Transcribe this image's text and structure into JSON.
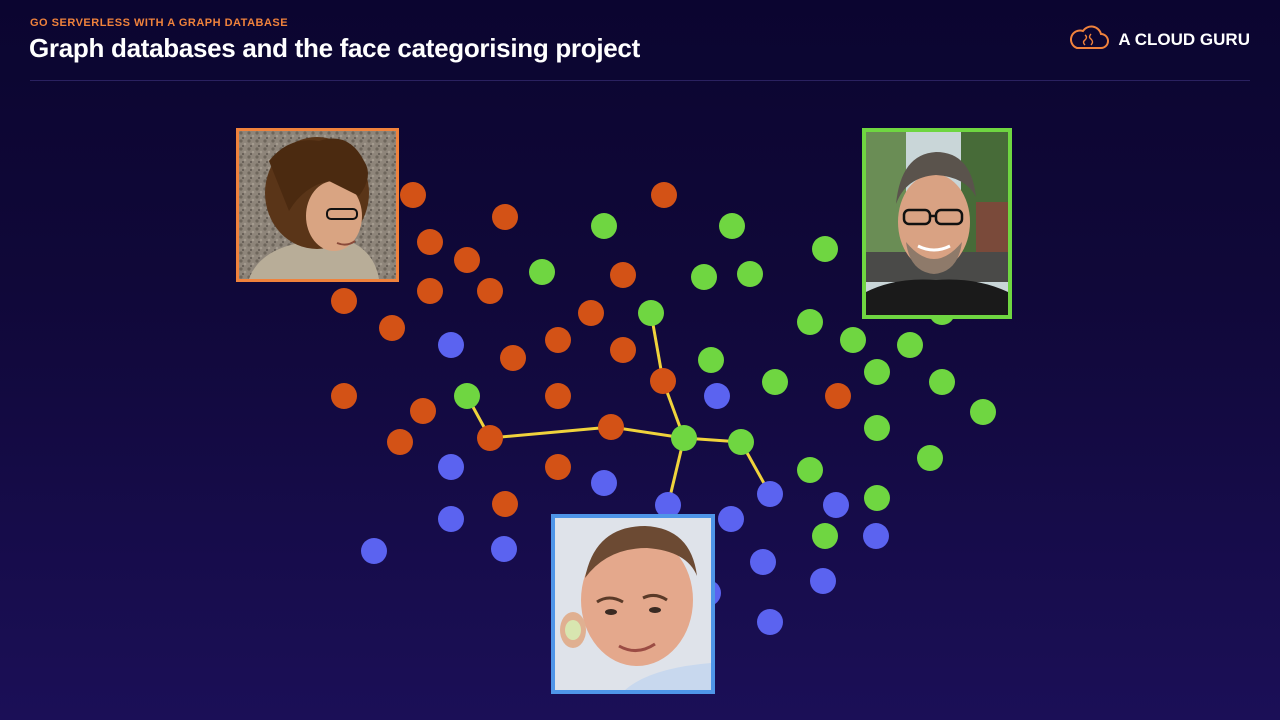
{
  "header": {
    "eyebrow": "GO SERVERLESS WITH A GRAPH DATABASE",
    "title": "Graph databases and the face categorising project"
  },
  "logo": {
    "text": "A CLOUD GURU",
    "icon": "cloud-brain-icon"
  },
  "colors": {
    "orange": "#d35216",
    "green": "#6fd641",
    "blue": "#5b63f0",
    "edge": "#f0d33c",
    "frame_orange": "#f0823c",
    "frame_green": "#6fd641",
    "frame_blue": "#4f95e8"
  },
  "photos": [
    {
      "name": "photo-curly-haired-man",
      "color": "orange"
    },
    {
      "name": "photo-bearded-man",
      "color": "green"
    },
    {
      "name": "photo-bald-man",
      "color": "blue"
    }
  ]
}
